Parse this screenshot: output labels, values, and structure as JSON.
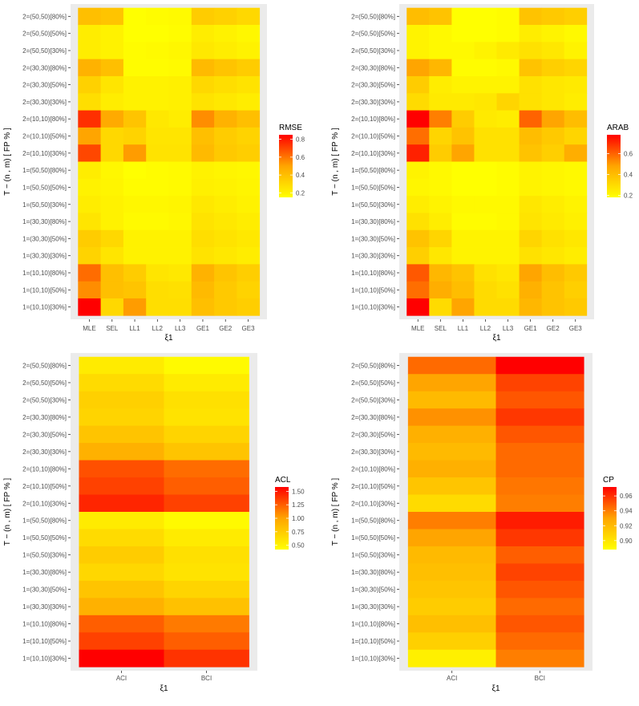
{
  "chart_data": [
    {
      "type": "heatmap",
      "panel": "top-left",
      "xlabel": "ξ1",
      "ylabel": "T − (n , m) [ FP % ]",
      "legend_title": "RMSE",
      "legend_ticks": [
        "0.8",
        "0.6",
        "0.4",
        "0.2"
      ],
      "legend_tick_values": [
        0.8,
        0.6,
        0.4,
        0.2
      ],
      "value_range": [
        0.15,
        0.85
      ],
      "categories_x": [
        "MLE",
        "SEL",
        "LL1",
        "LL2",
        "LL3",
        "GE1",
        "GE2",
        "GE3"
      ],
      "categories_y": [
        "2=(50,50)[80%]",
        "2=(50,50)[50%]",
        "2=(50,50)[30%]",
        "2=(30,30)[80%]",
        "2=(30,30)[50%]",
        "2=(30,30)[30%]",
        "2=(10,10)[80%]",
        "2=(10,10)[50%]",
        "2=(10,10)[30%]",
        "1=(50,50)[80%]",
        "1=(50,50)[50%]",
        "1=(50,50)[30%]",
        "1=(30,30)[80%]",
        "1=(30,30)[50%]",
        "1=(30,30)[30%]",
        "1=(10,10)[80%]",
        "1=(10,10)[50%]",
        "1=(10,10)[30%]"
      ],
      "values": [
        [
          0.4,
          0.38,
          0.15,
          0.16,
          0.17,
          0.35,
          0.33,
          0.3
        ],
        [
          0.22,
          0.2,
          0.15,
          0.15,
          0.16,
          0.22,
          0.2,
          0.18
        ],
        [
          0.22,
          0.2,
          0.16,
          0.17,
          0.18,
          0.24,
          0.22,
          0.2
        ],
        [
          0.45,
          0.4,
          0.16,
          0.16,
          0.17,
          0.42,
          0.38,
          0.35
        ],
        [
          0.33,
          0.25,
          0.2,
          0.2,
          0.21,
          0.3,
          0.28,
          0.26
        ],
        [
          0.28,
          0.22,
          0.2,
          0.2,
          0.21,
          0.26,
          0.24,
          0.22
        ],
        [
          0.75,
          0.48,
          0.38,
          0.24,
          0.22,
          0.55,
          0.45,
          0.4
        ],
        [
          0.5,
          0.3,
          0.32,
          0.25,
          0.25,
          0.4,
          0.35,
          0.32
        ],
        [
          0.7,
          0.3,
          0.52,
          0.26,
          0.26,
          0.42,
          0.36,
          0.34
        ],
        [
          0.22,
          0.18,
          0.15,
          0.16,
          0.17,
          0.2,
          0.19,
          0.18
        ],
        [
          0.2,
          0.19,
          0.16,
          0.16,
          0.17,
          0.21,
          0.2,
          0.19
        ],
        [
          0.22,
          0.2,
          0.18,
          0.18,
          0.19,
          0.24,
          0.22,
          0.2
        ],
        [
          0.25,
          0.2,
          0.17,
          0.17,
          0.18,
          0.26,
          0.24,
          0.22
        ],
        [
          0.35,
          0.3,
          0.2,
          0.2,
          0.2,
          0.28,
          0.26,
          0.24
        ],
        [
          0.32,
          0.25,
          0.2,
          0.2,
          0.2,
          0.26,
          0.24,
          0.22
        ],
        [
          0.62,
          0.4,
          0.35,
          0.25,
          0.24,
          0.45,
          0.38,
          0.34
        ],
        [
          0.55,
          0.4,
          0.38,
          0.28,
          0.27,
          0.42,
          0.36,
          0.32
        ],
        [
          0.85,
          0.3,
          0.52,
          0.28,
          0.28,
          0.4,
          0.36,
          0.34
        ]
      ]
    },
    {
      "type": "heatmap",
      "panel": "top-right",
      "xlabel": "ξ1",
      "ylabel": "T − (n , m) [ FP % ]",
      "legend_title": "ARAB",
      "legend_ticks": [
        "0.6",
        "0.4",
        "0.2"
      ],
      "legend_tick_values": [
        0.6,
        0.4,
        0.2
      ],
      "value_range": [
        0.18,
        0.78
      ],
      "categories_x": [
        "MLE",
        "SEL",
        "LL1",
        "LL2",
        "LL3",
        "GE1",
        "GE2",
        "GE3"
      ],
      "categories_y": [
        "2=(50,50)[80%]",
        "2=(50,50)[50%]",
        "2=(50,50)[30%]",
        "2=(30,30)[80%]",
        "2=(30,30)[50%]",
        "2=(30,30)[30%]",
        "2=(10,10)[80%]",
        "2=(10,10)[50%]",
        "2=(10,10)[30%]",
        "1=(50,50)[80%]",
        "1=(50,50)[50%]",
        "1=(50,50)[30%]",
        "1=(30,30)[80%]",
        "1=(30,30)[50%]",
        "1=(30,30)[30%]",
        "1=(10,10)[80%]",
        "1=(10,10)[50%]",
        "1=(10,10)[30%]"
      ],
      "values": [
        [
          0.4,
          0.38,
          0.18,
          0.18,
          0.19,
          0.38,
          0.36,
          0.34
        ],
        [
          0.22,
          0.2,
          0.18,
          0.18,
          0.19,
          0.24,
          0.22,
          0.2
        ],
        [
          0.22,
          0.2,
          0.2,
          0.22,
          0.25,
          0.28,
          0.26,
          0.22
        ],
        [
          0.48,
          0.42,
          0.19,
          0.19,
          0.2,
          0.38,
          0.34,
          0.32
        ],
        [
          0.35,
          0.24,
          0.22,
          0.22,
          0.22,
          0.28,
          0.26,
          0.25
        ],
        [
          0.3,
          0.25,
          0.25,
          0.26,
          0.32,
          0.28,
          0.26,
          0.24
        ],
        [
          0.78,
          0.55,
          0.35,
          0.25,
          0.24,
          0.6,
          0.48,
          0.4
        ],
        [
          0.58,
          0.32,
          0.38,
          0.28,
          0.28,
          0.4,
          0.36,
          0.32
        ],
        [
          0.72,
          0.35,
          0.48,
          0.28,
          0.28,
          0.38,
          0.34,
          0.45
        ],
        [
          0.22,
          0.2,
          0.18,
          0.18,
          0.19,
          0.22,
          0.21,
          0.2
        ],
        [
          0.21,
          0.2,
          0.18,
          0.18,
          0.19,
          0.22,
          0.21,
          0.2
        ],
        [
          0.24,
          0.22,
          0.2,
          0.2,
          0.2,
          0.26,
          0.24,
          0.22
        ],
        [
          0.28,
          0.24,
          0.19,
          0.19,
          0.2,
          0.27,
          0.25,
          0.23
        ],
        [
          0.38,
          0.32,
          0.22,
          0.22,
          0.22,
          0.32,
          0.28,
          0.26
        ],
        [
          0.34,
          0.26,
          0.22,
          0.22,
          0.22,
          0.28,
          0.26,
          0.24
        ],
        [
          0.62,
          0.42,
          0.38,
          0.28,
          0.26,
          0.48,
          0.4,
          0.36
        ],
        [
          0.58,
          0.45,
          0.4,
          0.3,
          0.28,
          0.44,
          0.38,
          0.34
        ],
        [
          0.78,
          0.3,
          0.48,
          0.3,
          0.3,
          0.42,
          0.38,
          0.36
        ]
      ]
    },
    {
      "type": "heatmap",
      "panel": "bottom-left",
      "xlabel": "ξ1",
      "ylabel": "T − (n , m) [ FP % ]",
      "legend_title": "ACL",
      "legend_ticks": [
        "1.50",
        "1.25",
        "1.00",
        "0.75",
        "0.50"
      ],
      "legend_tick_values": [
        1.5,
        1.25,
        1.0,
        0.75,
        0.5
      ],
      "value_range": [
        0.42,
        1.58
      ],
      "categories_x": [
        "ACI",
        "BCI"
      ],
      "categories_y": [
        "2=(50,50)[80%]",
        "2=(50,50)[50%]",
        "2=(50,50)[30%]",
        "2=(30,30)[80%]",
        "2=(30,30)[50%]",
        "2=(30,30)[30%]",
        "2=(10,10)[80%]",
        "2=(10,10)[50%]",
        "2=(10,10)[30%]",
        "1=(50,50)[80%]",
        "1=(50,50)[50%]",
        "1=(50,50)[30%]",
        "1=(30,30)[80%]",
        "1=(30,30)[50%]",
        "1=(30,30)[30%]",
        "1=(10,10)[80%]",
        "1=(10,10)[50%]",
        "1=(10,10)[30%]"
      ],
      "values": [
        [
          0.55,
          0.45
        ],
        [
          0.65,
          0.55
        ],
        [
          0.72,
          0.62
        ],
        [
          0.7,
          0.6
        ],
        [
          0.8,
          0.7
        ],
        [
          0.92,
          0.8
        ],
        [
          1.3,
          1.2
        ],
        [
          1.35,
          1.25
        ],
        [
          1.45,
          1.35
        ],
        [
          0.55,
          0.45
        ],
        [
          0.65,
          0.55
        ],
        [
          0.75,
          0.62
        ],
        [
          0.68,
          0.6
        ],
        [
          0.8,
          0.7
        ],
        [
          0.92,
          0.82
        ],
        [
          1.25,
          1.15
        ],
        [
          1.35,
          1.25
        ],
        [
          1.58,
          1.4
        ]
      ]
    },
    {
      "type": "heatmap",
      "panel": "bottom-right",
      "xlabel": "ξ1",
      "ylabel": "T − (n , m) [ FP % ]",
      "legend_title": "CP",
      "legend_ticks": [
        "0.96",
        "0.94",
        "0.92",
        "0.90"
      ],
      "legend_tick_values": [
        0.96,
        0.94,
        0.92,
        0.9
      ],
      "value_range": [
        0.888,
        0.972
      ],
      "categories_x": [
        "ACI",
        "BCI"
      ],
      "categories_y": [
        "2=(50,50)[80%]",
        "2=(50,50)[50%]",
        "2=(50,50)[30%]",
        "2=(30,30)[80%]",
        "2=(30,30)[50%]",
        "2=(30,30)[30%]",
        "2=(10,10)[80%]",
        "2=(10,10)[50%]",
        "2=(10,10)[30%]",
        "1=(50,50)[80%]",
        "1=(50,50)[50%]",
        "1=(50,50)[30%]",
        "1=(30,30)[80%]",
        "1=(30,30)[50%]",
        "1=(30,30)[30%]",
        "1=(10,10)[80%]",
        "1=(10,10)[50%]",
        "1=(10,10)[30%]"
      ],
      "values": [
        [
          0.945,
          0.972
        ],
        [
          0.93,
          0.955
        ],
        [
          0.92,
          0.95
        ],
        [
          0.935,
          0.958
        ],
        [
          0.925,
          0.95
        ],
        [
          0.92,
          0.945
        ],
        [
          0.925,
          0.945
        ],
        [
          0.915,
          0.942
        ],
        [
          0.905,
          0.94
        ],
        [
          0.94,
          0.965
        ],
        [
          0.93,
          0.958
        ],
        [
          0.92,
          0.948
        ],
        [
          0.918,
          0.955
        ],
        [
          0.915,
          0.95
        ],
        [
          0.912,
          0.945
        ],
        [
          0.918,
          0.95
        ],
        [
          0.91,
          0.945
        ],
        [
          0.895,
          0.94
        ]
      ]
    }
  ]
}
